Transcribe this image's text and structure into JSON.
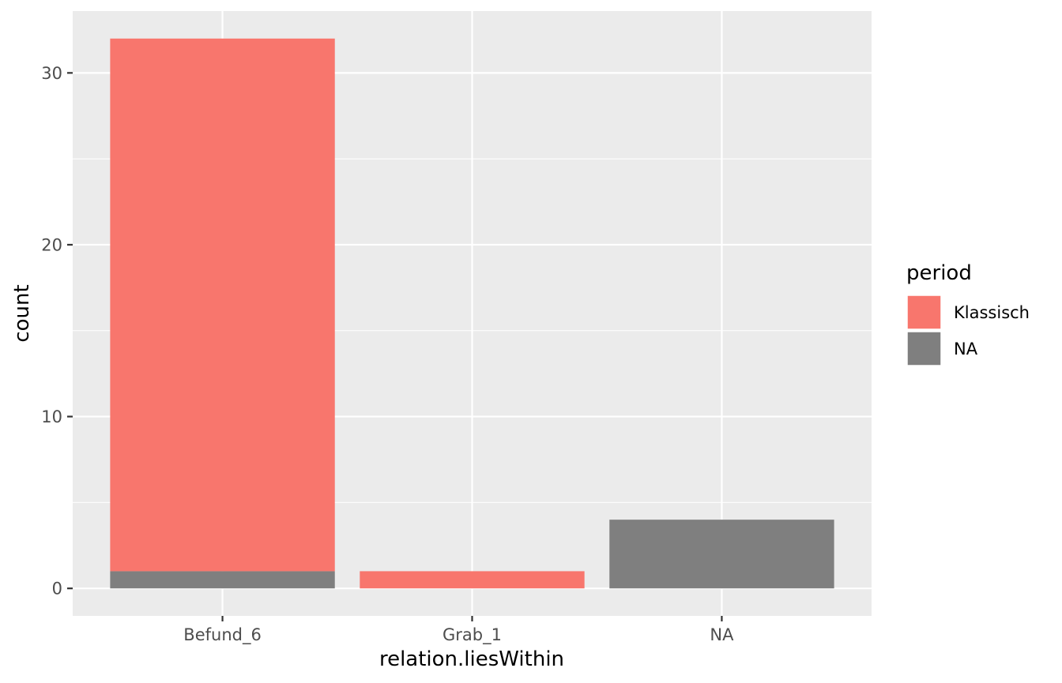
{
  "chart_data": {
    "type": "bar",
    "stacked": true,
    "xlabel": "relation.liesWithin",
    "ylabel": "count",
    "categories": [
      "Befund_6",
      "Grab_1",
      "NA"
    ],
    "series": [
      {
        "name": "Klassisch",
        "color": "#F8766D",
        "values": [
          31,
          1,
          0
        ]
      },
      {
        "name": "NA",
        "color": "#7F7F7F",
        "values": [
          1,
          0,
          4
        ]
      }
    ],
    "stack_order": [
      "NA",
      "Klassisch"
    ],
    "ylim": [
      -1.6,
      33.6
    ],
    "yticks_major": [
      0,
      10,
      20,
      30
    ],
    "yticks_minor": [
      5,
      15,
      25
    ],
    "ytick_labels": [
      "0",
      "10",
      "20",
      "30"
    ],
    "grid": true,
    "legend": {
      "title": "period",
      "position": "right",
      "items": [
        {
          "label": "Klassisch",
          "color": "#F8766D"
        },
        {
          "label": "NA",
          "color": "#7F7F7F"
        }
      ]
    },
    "panel_background": "#EBEBEB"
  }
}
